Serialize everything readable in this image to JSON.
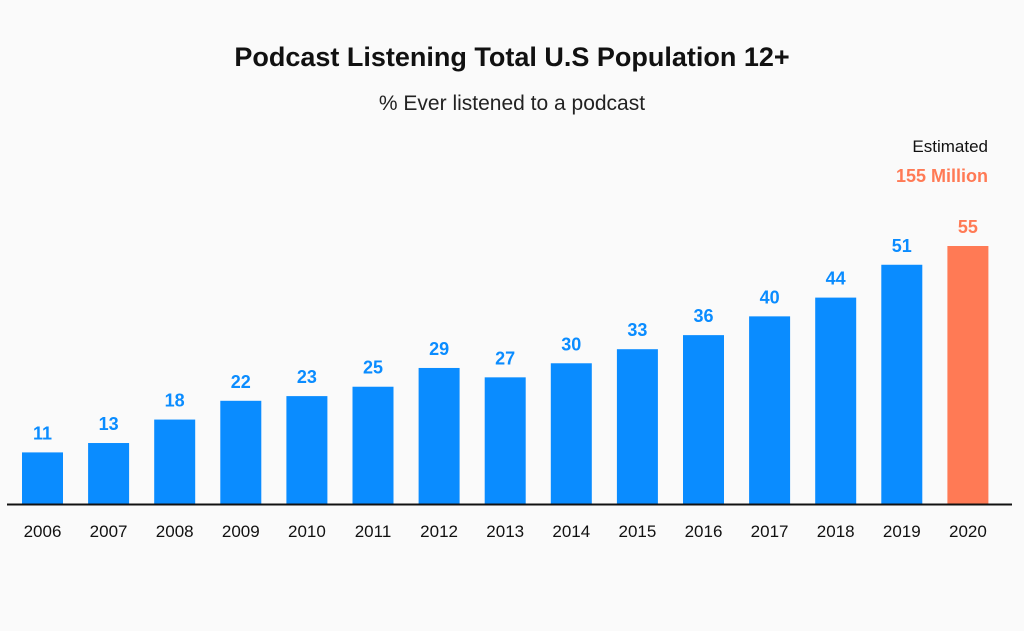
{
  "chart_data": {
    "type": "bar",
    "title": "Podcast Listening Total U.S Population 12+",
    "subtitle": "% Ever listened to a podcast",
    "categories": [
      "2006",
      "2007",
      "2008",
      "2009",
      "2010",
      "2011",
      "2012",
      "2013",
      "2014",
      "2015",
      "2016",
      "2017",
      "2018",
      "2019",
      "2020"
    ],
    "values": [
      11,
      13,
      18,
      22,
      23,
      25,
      29,
      27,
      30,
      33,
      36,
      40,
      44,
      51,
      55
    ],
    "highlight_index": 14,
    "annotation": {
      "label": "Estimated",
      "value": "155 Million"
    },
    "xlabel": "",
    "ylabel": "",
    "ylim": [
      0,
      55
    ],
    "grid": false,
    "colors": {
      "bar": "#0a8cff",
      "highlight": "#ff7a55",
      "axis": "#111111",
      "label": "#0a8cff"
    }
  }
}
